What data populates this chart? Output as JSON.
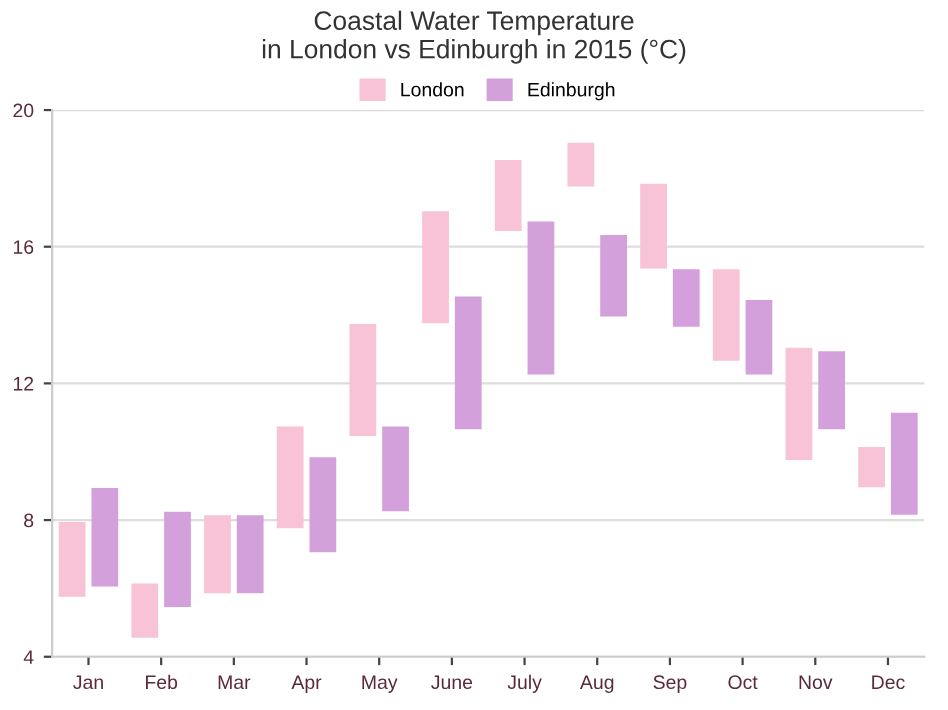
{
  "chart_data": {
    "type": "bar",
    "title": "Coastal Water Temperature\nin London vs Edinburgh in 2015 (°C)",
    "categories": [
      "Jan",
      "Feb",
      "Mar",
      "Apr",
      "May",
      "June",
      "July",
      "Aug",
      "Sep",
      "Oct",
      "Nov",
      "Dec"
    ],
    "series": [
      {
        "name": "London",
        "color": "#f8c3d6",
        "base": [
          5.8,
          4.6,
          5.9,
          7.8,
          10.5,
          13.8,
          16.5,
          17.8,
          15.4,
          12.7,
          9.8,
          9.0
        ],
        "values": [
          2.1,
          1.5,
          2.2,
          2.9,
          3.2,
          3.2,
          2.0,
          1.2,
          2.4,
          2.6,
          3.2,
          1.1
        ]
      },
      {
        "name": "Edinburgh",
        "color": "#d4a0dc",
        "base": [
          6.1,
          5.5,
          5.9,
          7.1,
          8.3,
          10.7,
          12.3,
          14.0,
          13.7,
          12.3,
          10.7,
          8.2
        ],
        "values": [
          2.8,
          2.7,
          2.2,
          2.7,
          2.4,
          3.8,
          4.4,
          2.3,
          1.6,
          2.1,
          2.2,
          2.9
        ]
      }
    ],
    "ylim": [
      4,
      20
    ],
    "yticks": [
      4,
      8,
      12,
      16,
      20
    ],
    "grid": "y",
    "legend": "top"
  }
}
